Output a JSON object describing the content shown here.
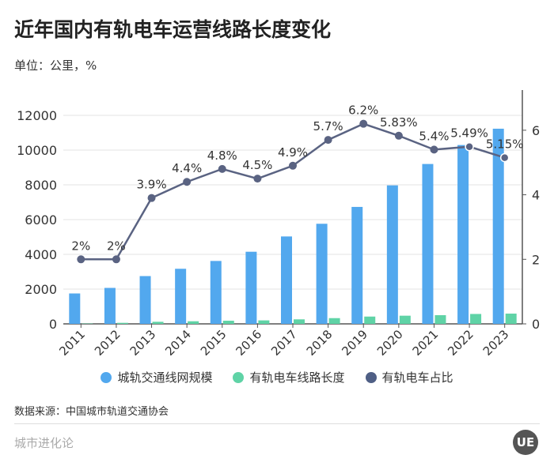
{
  "title": "近年国内有轨电车运营线路长度变化",
  "unit": "单位：公里，%",
  "source": "数据来源：中国城市轨道交通协会",
  "brand": "城市进化论",
  "logo_text": "UE",
  "colors": {
    "blue": "#52a8ee",
    "green": "#5fd3a6",
    "line": "#5a6382"
  },
  "chart_data": {
    "type": "bar",
    "categories": [
      "2011",
      "2012",
      "2013",
      "2014",
      "2015",
      "2016",
      "2017",
      "2018",
      "2019",
      "2020",
      "2021",
      "2022",
      "2023"
    ],
    "series": [
      {
        "name": "城轨交通线网规模",
        "type": "bar",
        "axis": "left",
        "values": [
          1750,
          2070,
          2750,
          3170,
          3620,
          4150,
          5030,
          5760,
          6730,
          7970,
          9200,
          10290,
          11230
        ]
      },
      {
        "name": "有轨电车线路长度",
        "type": "bar",
        "axis": "left",
        "values": [
          20,
          60,
          120,
          150,
          180,
          200,
          260,
          330,
          420,
          470,
          500,
          570,
          590
        ]
      },
      {
        "name": "有轨电车占比",
        "type": "line",
        "axis": "right",
        "values": [
          2,
          2,
          3.9,
          4.4,
          4.8,
          4.5,
          4.9,
          5.7,
          6.2,
          5.83,
          5.4,
          5.49,
          5.15
        ],
        "labels": [
          "2%",
          "2%",
          "3.9%",
          "4.4%",
          "4.8%",
          "4.5%",
          "4.9%",
          "5.7%",
          "6.2%",
          "5.83%",
          "5.4%",
          "5.49%",
          "5.15%"
        ]
      }
    ],
    "left_axis": {
      "range": [
        0,
        13000
      ],
      "ticks": [
        "0",
        "2000",
        "4000",
        "6000",
        "8000",
        "10000",
        "12000"
      ]
    },
    "right_axis": {
      "range": [
        0,
        7
      ],
      "ticks": [
        "0",
        "2",
        "4",
        "6"
      ]
    },
    "grid": true,
    "legend": "bottom"
  }
}
